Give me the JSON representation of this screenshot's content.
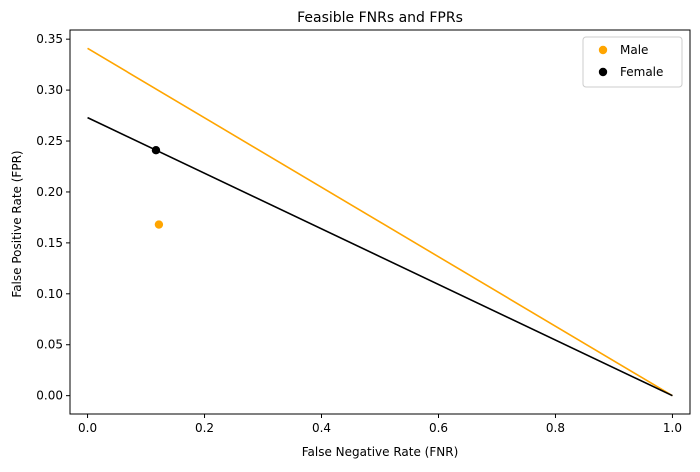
{
  "chart_data": {
    "type": "scatter",
    "title": "Feasible FNRs and FPRs",
    "xlabel": "False Negative Rate (FNR)",
    "ylabel": "False Positive Rate (FPR)",
    "xlim": [
      -0.03,
      1.03
    ],
    "ylim": [
      -0.018,
      0.359
    ],
    "x_ticks": [
      0.0,
      0.2,
      0.4,
      0.6,
      0.8,
      1.0
    ],
    "x_tick_labels": [
      "0.0",
      "0.2",
      "0.4",
      "0.6",
      "0.8",
      "1.0"
    ],
    "y_ticks": [
      0.0,
      0.05,
      0.1,
      0.15,
      0.2,
      0.25,
      0.3,
      0.35
    ],
    "y_tick_labels": [
      "0.00",
      "0.05",
      "0.10",
      "0.15",
      "0.20",
      "0.25",
      "0.30",
      "0.35"
    ],
    "grid": false,
    "legend_position": "top-right",
    "series": [
      {
        "name": "Male",
        "color": "#ffa500",
        "point": {
          "x": 0.122,
          "y": 0.168
        },
        "line": [
          {
            "x": 0.0,
            "y": 0.341
          },
          {
            "x": 1.0,
            "y": 0.0
          }
        ]
      },
      {
        "name": "Female",
        "color": "#000000",
        "point": {
          "x": 0.117,
          "y": 0.241
        },
        "line": [
          {
            "x": 0.0,
            "y": 0.273
          },
          {
            "x": 1.0,
            "y": 0.0
          }
        ]
      }
    ]
  }
}
